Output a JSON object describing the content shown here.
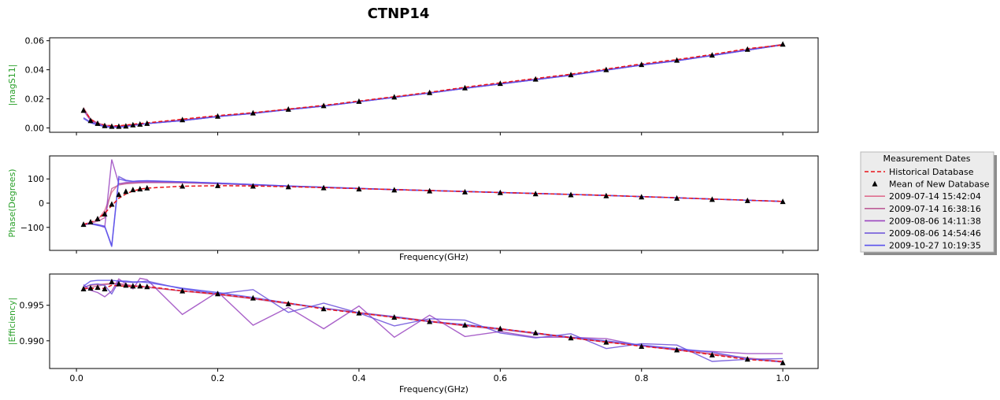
{
  "figure": {
    "title": "CTNP14"
  },
  "legend": {
    "title": "Measurement Dates",
    "placement": "right-of-middle-panel",
    "entries": [
      {
        "label": "Historical Database",
        "style": "dashed-line",
        "color": "#e8131a"
      },
      {
        "label": "Mean of New Database",
        "style": "triangle-marker",
        "color": "#000000"
      },
      {
        "label": "2009-07-14 15:42:04",
        "style": "line",
        "color": "#df6e8f"
      },
      {
        "label": "2009-07-14 16:38:16",
        "style": "line",
        "color": "#bd5e97"
      },
      {
        "label": "2009-08-06 14:11:38",
        "style": "line",
        "color": "#9a45bf"
      },
      {
        "label": "2009-08-06 14:54:46",
        "style": "line",
        "color": "#6a4fd9"
      },
      {
        "label": "2009-10-27 10:19:35",
        "style": "line",
        "color": "#5a52ee"
      }
    ]
  },
  "chart_data": [
    {
      "type": "line",
      "panel": "magnitude",
      "ylabel": "|magS11|",
      "xlabel": "",
      "ylim": [
        -0.003,
        0.062
      ],
      "yticks": [
        0.0,
        0.02,
        0.04,
        0.06
      ],
      "ytick_labels": [
        "0.00",
        "0.02",
        "0.04",
        "0.06"
      ],
      "xticks_visible": false,
      "x": [
        0.01,
        0.02,
        0.03,
        0.04,
        0.05,
        0.06,
        0.07,
        0.08,
        0.09,
        0.1,
        0.15,
        0.2,
        0.25,
        0.3,
        0.35,
        0.4,
        0.45,
        0.5,
        0.55,
        0.6,
        0.65,
        0.7,
        0.75,
        0.8,
        0.85,
        0.9,
        0.95,
        1.0
      ],
      "historical": [
        0.013,
        0.006,
        0.003,
        0.002,
        0.0015,
        0.0015,
        0.002,
        0.0025,
        0.003,
        0.0035,
        0.006,
        0.0085,
        0.0105,
        0.013,
        0.0155,
        0.0185,
        0.0215,
        0.0245,
        0.028,
        0.031,
        0.034,
        0.037,
        0.0405,
        0.044,
        0.047,
        0.0505,
        0.0545,
        0.057
      ],
      "mean": [
        0.012,
        0.005,
        0.003,
        0.0015,
        0.001,
        0.001,
        0.0012,
        0.002,
        0.0025,
        0.003,
        0.0055,
        0.008,
        0.0102,
        0.0128,
        0.0152,
        0.0182,
        0.0212,
        0.0242,
        0.0275,
        0.0305,
        0.0335,
        0.0365,
        0.04,
        0.0435,
        0.0465,
        0.05,
        0.054,
        0.0575
      ],
      "series": [
        {
          "values": [
            0.014,
            0.006,
            0.0035,
            0.002,
            0.0013,
            0.0012,
            0.0015,
            0.002,
            0.0025,
            0.003,
            0.0055,
            0.008,
            0.0102,
            0.0128,
            0.0152,
            0.0182,
            0.0212,
            0.0242,
            0.0275,
            0.0305,
            0.0335,
            0.0365,
            0.04,
            0.0435,
            0.0465,
            0.05,
            0.054,
            0.0575
          ]
        },
        {
          "values": [
            0.013,
            0.006,
            0.003,
            0.0018,
            0.0012,
            0.0011,
            0.0014,
            0.002,
            0.0025,
            0.003,
            0.0055,
            0.008,
            0.0102,
            0.0128,
            0.0152,
            0.0182,
            0.0212,
            0.0242,
            0.0275,
            0.0305,
            0.0335,
            0.0365,
            0.04,
            0.0435,
            0.0465,
            0.05,
            0.054,
            0.0575
          ]
        },
        {
          "values": [
            0.012,
            0.005,
            0.003,
            0.0012,
            0.0008,
            0.0008,
            0.001,
            0.0018,
            0.0024,
            0.003,
            0.005,
            0.0078,
            0.01,
            0.0126,
            0.015,
            0.018,
            0.021,
            0.024,
            0.0272,
            0.0302,
            0.0332,
            0.0362,
            0.0398,
            0.0432,
            0.0462,
            0.0498,
            0.0535,
            0.0572
          ]
        },
        {
          "values": [
            0.007,
            0.004,
            0.0025,
            0.0008,
            0.0005,
            0.0006,
            0.001,
            0.0018,
            0.0024,
            0.003,
            0.005,
            0.0078,
            0.01,
            0.0126,
            0.015,
            0.018,
            0.021,
            0.024,
            0.0272,
            0.0302,
            0.0332,
            0.0362,
            0.0398,
            0.0432,
            0.0462,
            0.0498,
            0.0535,
            0.0572
          ]
        },
        {
          "values": [
            0.0065,
            0.0035,
            0.002,
            0.001,
            0.0006,
            0.0006,
            0.001,
            0.0018,
            0.0024,
            0.003,
            0.005,
            0.0078,
            0.01,
            0.0126,
            0.015,
            0.018,
            0.021,
            0.024,
            0.0272,
            0.0302,
            0.0332,
            0.0362,
            0.0398,
            0.0432,
            0.0462,
            0.0498,
            0.0535,
            0.0572
          ]
        }
      ]
    },
    {
      "type": "line",
      "panel": "phase",
      "ylabel": "Phase(Degrees)",
      "xlabel": "Frequency(GHz)",
      "ylim": [
        -195,
        195
      ],
      "yticks": [
        -100,
        0,
        100
      ],
      "ytick_labels": [
        "−100",
        "0",
        "100"
      ],
      "xticks_visible": false,
      "x": [
        0.01,
        0.02,
        0.03,
        0.04,
        0.05,
        0.06,
        0.07,
        0.08,
        0.09,
        0.1,
        0.15,
        0.2,
        0.25,
        0.3,
        0.35,
        0.4,
        0.45,
        0.5,
        0.55,
        0.6,
        0.65,
        0.7,
        0.75,
        0.8,
        0.85,
        0.9,
        0.95,
        1.0
      ],
      "historical": [
        -88,
        -80,
        -65,
        -42,
        -10,
        20,
        38,
        50,
        58,
        62,
        70,
        72,
        71,
        68,
        64,
        60,
        56,
        52,
        48,
        44,
        40,
        36,
        32,
        27,
        22,
        17,
        12,
        7
      ],
      "mean": [
        -88,
        -78,
        -65,
        -45,
        -5,
        35,
        48,
        55,
        58,
        62,
        70,
        72,
        70,
        67,
        63,
        58,
        54,
        50,
        46,
        43,
        38,
        34,
        30,
        25,
        20,
        15,
        10,
        6
      ],
      "series": [
        {
          "values": [
            -86,
            -80,
            -70,
            -30,
            45,
            80,
            82,
            84,
            85,
            86,
            85,
            82,
            76,
            70,
            65,
            60,
            56,
            52,
            48,
            44,
            40,
            36,
            32,
            27,
            22,
            17,
            12,
            7
          ]
        },
        {
          "values": [
            -88,
            -82,
            -75,
            -60,
            60,
            75,
            80,
            82,
            84,
            85,
            84,
            80,
            75,
            70,
            65,
            60,
            56,
            52,
            48,
            44,
            40,
            36,
            32,
            27,
            22,
            17,
            12,
            7
          ]
        },
        {
          "values": [
            -90,
            -85,
            -90,
            -100,
            180,
            80,
            85,
            87,
            88,
            88,
            86,
            82,
            76,
            70,
            65,
            60,
            56,
            52,
            48,
            44,
            40,
            36,
            32,
            27,
            22,
            17,
            12,
            7
          ]
        },
        {
          "values": [
            -88,
            -84,
            -88,
            -95,
            -175,
            110,
            95,
            90,
            92,
            92,
            88,
            83,
            77,
            71,
            66,
            61,
            56,
            52,
            48,
            44,
            40,
            36,
            32,
            27,
            22,
            17,
            12,
            7
          ]
        },
        {
          "values": [
            -87,
            -85,
            -92,
            -97,
            -180,
            100,
            92,
            90,
            92,
            93,
            88,
            83,
            77,
            71,
            66,
            61,
            56,
            52,
            48,
            44,
            40,
            36,
            32,
            27,
            22,
            17,
            12,
            7
          ]
        }
      ]
    },
    {
      "type": "line",
      "panel": "efficiency",
      "ylabel": "|Efficiency|",
      "xlabel": "Frequency(GHz)",
      "xlim": [
        -0.038,
        1.05
      ],
      "xticks": [
        0.0,
        0.2,
        0.4,
        0.6,
        0.8,
        1.0
      ],
      "xtick_labels": [
        "0.0",
        "0.2",
        "0.4",
        "0.6",
        "0.8",
        "1.0"
      ],
      "ylim": [
        0.9861,
        0.9994
      ],
      "yticks": [
        0.99,
        0.995
      ],
      "ytick_labels": [
        "0.990",
        "0.995"
      ],
      "x": [
        0.01,
        0.02,
        0.03,
        0.04,
        0.05,
        0.06,
        0.07,
        0.08,
        0.09,
        0.1,
        0.15,
        0.2,
        0.25,
        0.3,
        0.35,
        0.4,
        0.45,
        0.5,
        0.55,
        0.6,
        0.65,
        0.7,
        0.75,
        0.8,
        0.85,
        0.9,
        0.95,
        1.0
      ],
      "historical": [
        0.99737,
        0.99737,
        0.99737,
        0.99737,
        0.99782,
        0.99771,
        0.99769,
        0.99768,
        0.99766,
        0.99764,
        0.99703,
        0.99658,
        0.99598,
        0.99531,
        0.99447,
        0.9939,
        0.99329,
        0.99272,
        0.99219,
        0.99169,
        0.99111,
        0.99042,
        0.98981,
        0.98924,
        0.98874,
        0.98804,
        0.98736,
        0.98705
      ],
      "mean": [
        0.9973,
        0.9974,
        0.9975,
        0.9973,
        0.9983,
        0.998,
        0.9978,
        0.9977,
        0.9977,
        0.9976,
        0.997,
        0.9966,
        0.996,
        0.9952,
        0.9945,
        0.9939,
        0.9933,
        0.9927,
        0.9922,
        0.9917,
        0.9911,
        0.9904,
        0.9898,
        0.9892,
        0.9887,
        0.988,
        0.9874,
        0.9869
      ],
      "series": [
        {
          "values": [
            0.9975,
            0.9978,
            0.9979,
            0.998,
            0.9981,
            0.9981,
            0.9979,
            0.9978,
            0.9977,
            0.9976,
            0.997,
            0.9966,
            0.996,
            0.9953,
            0.9946,
            0.994,
            0.9934,
            0.9928,
            0.9922,
            0.9917,
            0.9911,
            0.9905,
            0.9899,
            0.9893,
            0.9888,
            0.9882,
            0.9876,
            0.9871
          ]
        },
        {
          "values": [
            0.9972,
            0.9975,
            0.9977,
            0.9979,
            0.998,
            0.998,
            0.9978,
            0.9977,
            0.9976,
            0.9975,
            0.997,
            0.9965,
            0.9959,
            0.9952,
            0.9946,
            0.9939,
            0.9933,
            0.9927,
            0.9921,
            0.9916,
            0.991,
            0.9904,
            0.9898,
            0.9893,
            0.9887,
            0.9881,
            0.9875,
            0.987
          ]
        },
        {
          "values": [
            0.9979,
            0.9971,
            0.9968,
            0.9962,
            0.997,
            0.9987,
            0.998,
            0.9973,
            0.9988,
            0.9986,
            0.9937,
            0.9969,
            0.9922,
            0.9947,
            0.9917,
            0.9949,
            0.9905,
            0.9936,
            0.9906,
            0.9913,
            0.9905,
            0.9905,
            0.9903,
            0.9893,
            0.9887,
            0.9885,
            0.9882,
            0.9882
          ]
        },
        {
          "values": [
            0.9975,
            0.9979,
            0.998,
            0.9978,
            0.9966,
            0.9984,
            0.9983,
            0.9982,
            0.9983,
            0.9984,
            0.9973,
            0.9966,
            0.9972,
            0.994,
            0.9953,
            0.9939,
            0.9921,
            0.9931,
            0.9929,
            0.9911,
            0.9904,
            0.991,
            0.9889,
            0.9896,
            0.9894,
            0.9871,
            0.9874,
            0.9875
          ]
        },
        {
          "values": [
            0.9977,
            0.9984,
            0.9985,
            0.9985,
            0.9985,
            0.9984,
            0.9984,
            0.9983,
            0.9983,
            0.9982,
            0.9974,
            0.9968,
            0.9961,
            0.9953,
            0.9946,
            0.9939,
            0.9934,
            0.9927,
            0.9923,
            0.9917,
            0.9911,
            0.9905,
            0.99,
            0.9894,
            0.9889,
            0.9884,
            0.9875,
            0.987
          ]
        }
      ]
    }
  ]
}
